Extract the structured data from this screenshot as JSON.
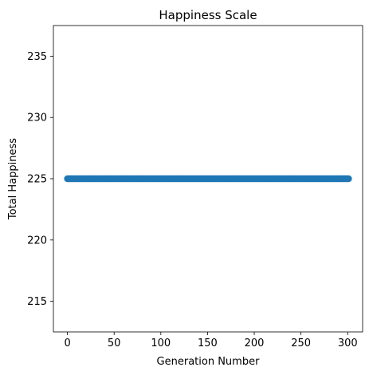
{
  "chart_data": {
    "type": "scatter",
    "title": "Happiness Scale",
    "xlabel": "Generation Number",
    "ylabel": "Total Happiness",
    "xlim": [
      -15,
      316
    ],
    "ylim": [
      212.5,
      237.5
    ],
    "xticks": [
      0,
      50,
      100,
      150,
      200,
      250,
      300
    ],
    "yticks": [
      215,
      220,
      225,
      230,
      235
    ],
    "grid": false,
    "marker_color": "#1f77b4",
    "series": [
      {
        "x_start": 0,
        "x_end": 301,
        "x_step": 1,
        "y_constant": 225
      }
    ]
  }
}
